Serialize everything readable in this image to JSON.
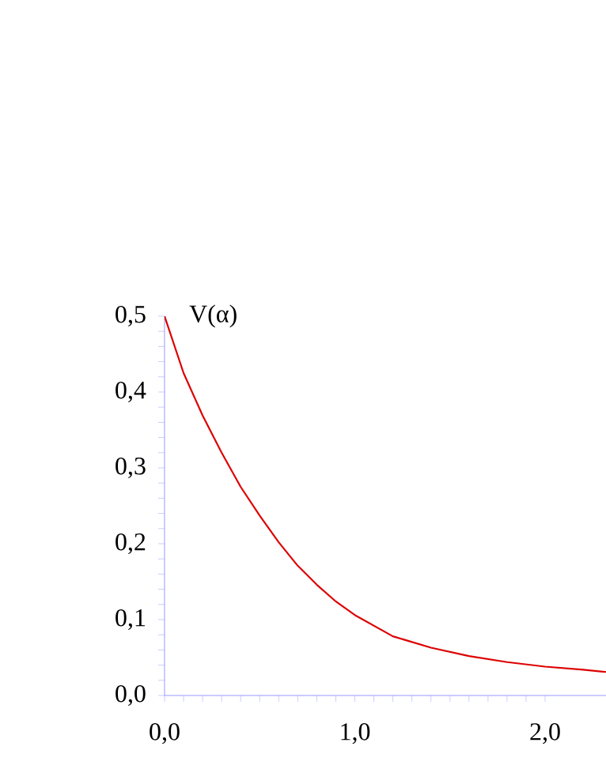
{
  "chart_data": {
    "type": "line",
    "ylabel": "V(α)",
    "x": [
      0,
      0.1,
      0.2,
      0.3,
      0.4,
      0.5,
      0.6,
      0.7,
      0.8,
      0.9,
      1.0,
      1.2,
      1.4,
      1.6,
      1.8,
      2.0,
      2.2,
      2.32
    ],
    "series": [
      {
        "color": "#dd0000",
        "values": [
          0.5,
          0.425,
          0.369,
          0.32,
          0.275,
          0.237,
          0.202,
          0.171,
          0.146,
          0.124,
          0.106,
          0.078,
          0.063,
          0.052,
          0.044,
          0.038,
          0.034,
          0.031
        ]
      }
    ],
    "xlim": [
      0,
      2.32
    ],
    "ylim": [
      0,
      0.5
    ],
    "xticks": [
      {
        "value": 0,
        "label": "0,0"
      },
      {
        "value": 1,
        "label": "1,0"
      },
      {
        "value": 2,
        "label": "2,0"
      }
    ],
    "yticks": [
      {
        "value": 0,
        "label": "0,0"
      },
      {
        "value": 0.1,
        "label": "0,1"
      },
      {
        "value": 0.2,
        "label": "0,2"
      },
      {
        "value": 0.3,
        "label": "0,3"
      },
      {
        "value": 0.4,
        "label": "0,4"
      },
      {
        "value": 0.5,
        "label": "0,5"
      }
    ],
    "grid": false,
    "marker": "none",
    "line_style": "solid"
  }
}
